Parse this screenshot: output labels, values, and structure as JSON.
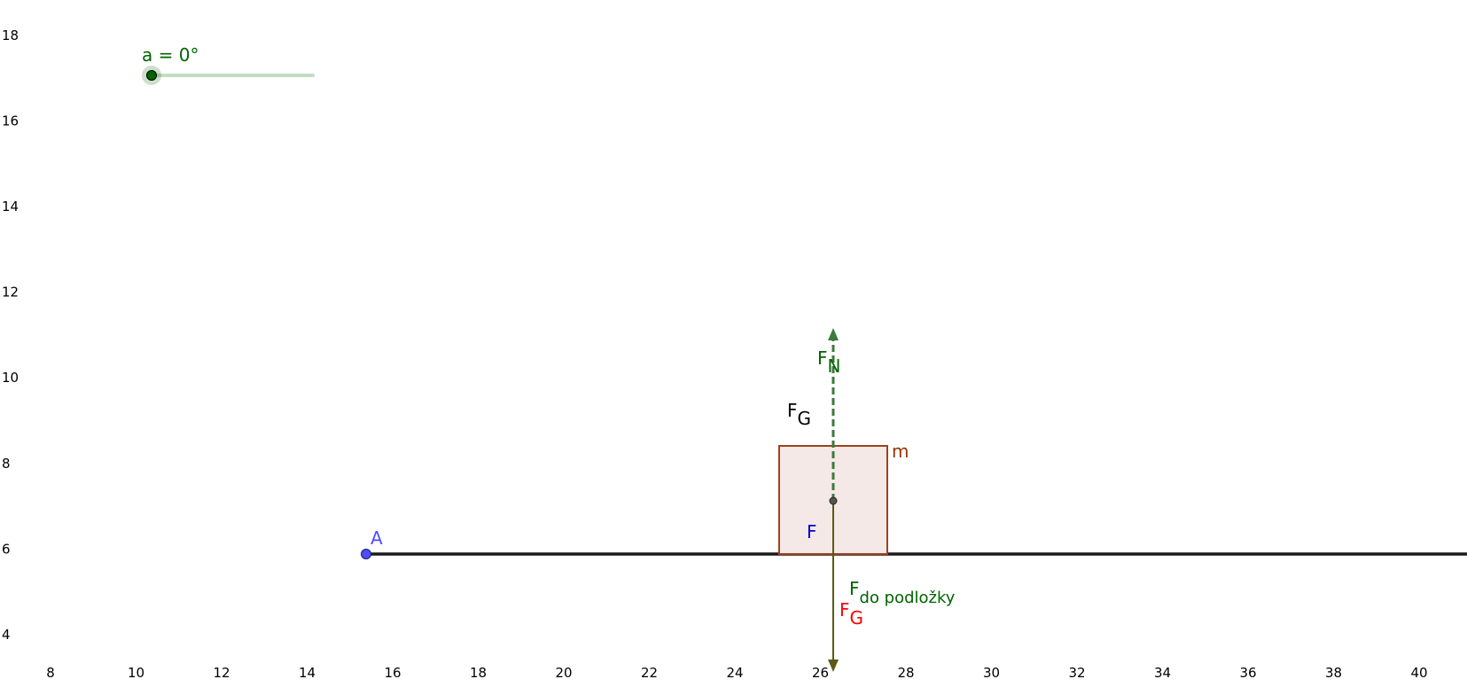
{
  "slider": {
    "label": "a = 0°"
  },
  "x_axis": {
    "ticks": [
      8,
      10,
      12,
      14,
      16,
      18,
      20,
      22,
      24,
      26,
      28,
      30,
      32,
      34,
      36,
      38,
      40
    ]
  },
  "y_axis": {
    "ticks": [
      4,
      6,
      8,
      10,
      12,
      14,
      16,
      18
    ]
  },
  "labels": {
    "point_a": "A",
    "mass": "m",
    "normal_force": {
      "main": "F",
      "sub": "N"
    },
    "gravity_black": {
      "main": "F",
      "sub": "G"
    },
    "force": "F",
    "force_to_surface": {
      "main": "F",
      "sub": "do podložky"
    },
    "gravity_red": {
      "main": "F",
      "sub": "G"
    }
  }
}
